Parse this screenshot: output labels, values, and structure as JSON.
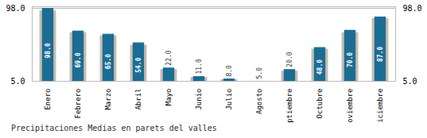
{
  "chart_data": {
    "type": "bar",
    "title": "Precipitaciones Medias en parets del valles",
    "categories": [
      "Enero",
      "Febrero",
      "Marzo",
      "Abril",
      "Mayo",
      "Junio",
      "Julio",
      "Agosto",
      "Septiembre",
      "Octubre",
      "Noviembre",
      "Diciembre"
    ],
    "series": [
      {
        "color": "#c5bdb0",
        "values": [
          95,
          67,
          63,
          51,
          20,
          10,
          7,
          5,
          18,
          46,
          67,
          85
        ]
      },
      {
        "color": "#1b6d94",
        "values": [
          98,
          69,
          65,
          54,
          22,
          11,
          8,
          5,
          20,
          48,
          70,
          87
        ],
        "value_labels": [
          "98.0",
          "69.0",
          "65.0",
          "54.0",
          "22.0",
          "11.0",
          "8.0",
          "5.0",
          "20.0",
          "48.0",
          "70.0",
          "87.0"
        ]
      }
    ],
    "ylim": [
      5,
      100
    ],
    "yticks": [
      {
        "value": 5,
        "label": "5.0"
      },
      {
        "value": 98,
        "label": "98.0"
      }
    ],
    "y2lim": [
      5,
      100
    ],
    "y2ticks": [
      {
        "value": 5,
        "label": "5.0"
      },
      {
        "value": 98,
        "label": "98.0"
      }
    ],
    "grid": true,
    "data_labels": true
  }
}
